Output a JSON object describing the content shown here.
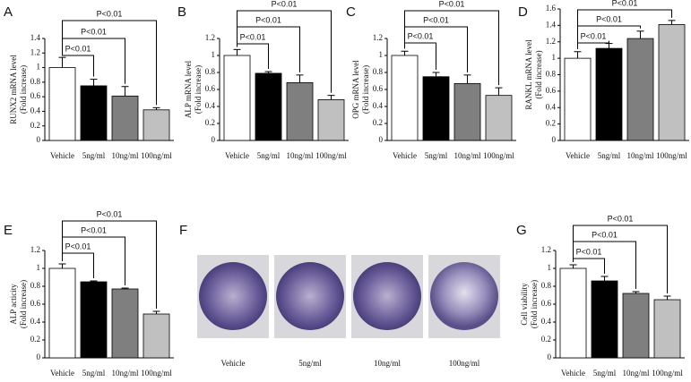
{
  "chart_data": [
    {
      "type": "bar",
      "panel": "A",
      "y_label": [
        "RUNX2 mRNA level",
        "(Fold increase)"
      ],
      "categories": [
        "Vehicle",
        "5ng/ml",
        "10ng/ml",
        "100ng/ml"
      ],
      "values": [
        1.0,
        0.75,
        0.61,
        0.42
      ],
      "errors": [
        0.14,
        0.09,
        0.13,
        0.03
      ],
      "colors": [
        "#ffffff",
        "#000000",
        "#7f7f7f",
        "#c0c0c0"
      ],
      "ylim": [
        0,
        1.4
      ],
      "yticks": [
        0,
        0.2,
        0.4,
        0.6,
        0.8,
        1,
        1.2,
        1.4
      ],
      "annotations": [
        "P<0.01",
        "P<0.01",
        "P<0.01"
      ]
    },
    {
      "type": "bar",
      "panel": "B",
      "y_label": [
        "ALP mRNA level",
        "(Fold increase)"
      ],
      "categories": [
        "Vehicle",
        "5ng/ml",
        "10ng/ml",
        "100ng/ml"
      ],
      "values": [
        1.0,
        0.79,
        0.68,
        0.48
      ],
      "errors": [
        0.07,
        0.02,
        0.09,
        0.05
      ],
      "colors": [
        "#ffffff",
        "#000000",
        "#7f7f7f",
        "#c0c0c0"
      ],
      "ylim": [
        0,
        1.2
      ],
      "yticks": [
        0,
        0.2,
        0.4,
        0.6,
        0.8,
        1,
        1.2
      ],
      "annotations": [
        "P<0.01",
        "P<0.01",
        "P<0.01"
      ]
    },
    {
      "type": "bar",
      "panel": "C",
      "y_label": [
        "OPG mRNA level",
        "(Fold increase)"
      ],
      "categories": [
        "Vehicle",
        "5ng/ml",
        "10ng/ml",
        "100ng/ml"
      ],
      "values": [
        1.0,
        0.75,
        0.67,
        0.53
      ],
      "errors": [
        0.05,
        0.05,
        0.1,
        0.09
      ],
      "colors": [
        "#ffffff",
        "#000000",
        "#7f7f7f",
        "#c0c0c0"
      ],
      "ylim": [
        0,
        1.2
      ],
      "yticks": [
        0,
        0.2,
        0.4,
        0.6,
        0.8,
        1,
        1.2
      ],
      "annotations": [
        "P<0.01",
        "P<0.01",
        "P<0.01"
      ]
    },
    {
      "type": "bar",
      "panel": "D",
      "y_label": [
        "RANKL mRNA level",
        "(Fold increase)"
      ],
      "categories": [
        "Vehicle",
        "5ng/ml",
        "10ng/ml",
        "100ng/ml"
      ],
      "values": [
        1.0,
        1.12,
        1.24,
        1.41
      ],
      "errors": [
        0.08,
        0.06,
        0.09,
        0.05
      ],
      "colors": [
        "#ffffff",
        "#000000",
        "#7f7f7f",
        "#c0c0c0"
      ],
      "ylim": [
        0,
        1.6
      ],
      "yticks": [
        0,
        0.2,
        0.4,
        0.6,
        0.8,
        1,
        1.2,
        1.4,
        1.6
      ],
      "annotations": [
        "P<0.01",
        "P<0.01",
        "P<0.01"
      ]
    },
    {
      "type": "bar",
      "panel": "E",
      "y_label": [
        "ALP acticity",
        "(Fold increase)"
      ],
      "categories": [
        "Vehicle",
        "5ng/ml",
        "10ng/ml",
        "100ng/ml"
      ],
      "values": [
        1.0,
        0.85,
        0.77,
        0.49
      ],
      "errors": [
        0.05,
        0.01,
        0.01,
        0.03
      ],
      "colors": [
        "#ffffff",
        "#000000",
        "#7f7f7f",
        "#c0c0c0"
      ],
      "ylim": [
        0,
        1.2
      ],
      "yticks": [
        0,
        0.2,
        0.4,
        0.6,
        0.8,
        1,
        1.2
      ],
      "annotations": [
        "P<0.01",
        "P<0.01",
        "P<0.01"
      ]
    },
    {
      "type": "image",
      "panel": "F",
      "captions": [
        "Vehicle",
        "5ng/ml",
        "10ng/ml",
        "100ng/ml"
      ]
    },
    {
      "type": "bar",
      "panel": "G",
      "y_label": [
        "Cell viability",
        "(Fold increase)"
      ],
      "categories": [
        "Vehicle",
        "5ng/ml",
        "10ng/ml",
        "100ng/ml"
      ],
      "values": [
        1.0,
        0.86,
        0.72,
        0.65
      ],
      "errors": [
        0.04,
        0.05,
        0.02,
        0.04
      ],
      "colors": [
        "#ffffff",
        "#000000",
        "#7f7f7f",
        "#c0c0c0"
      ],
      "ylim": [
        0,
        1.2
      ],
      "yticks": [
        0,
        0.2,
        0.4,
        0.6,
        0.8,
        1,
        1.2
      ],
      "annotations": [
        "P<0.01",
        "P<0.01",
        "P<0.01"
      ]
    }
  ]
}
